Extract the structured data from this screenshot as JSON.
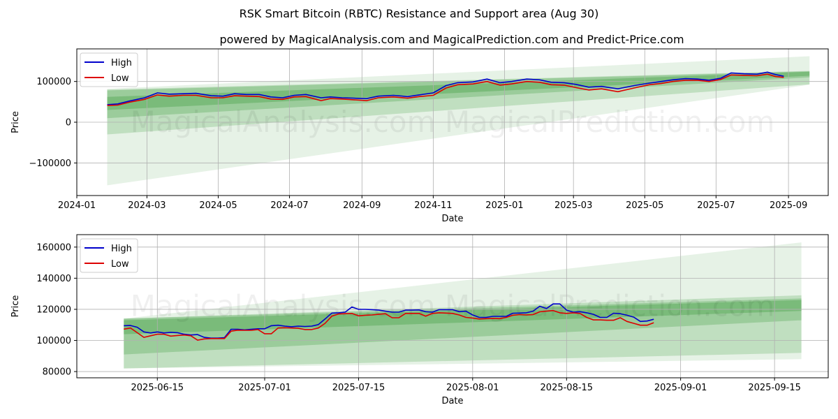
{
  "figure": {
    "title": "RSK Smart Bitcoin (RBTC) Resistance and Support area (Aug 30)",
    "subtitle": "powered by MagicalAnalysis.com and MagicalPrediction.com and Predict-Price.com",
    "watermark_text": "MagicalAnalysis.com   MagicalPrediction.com"
  },
  "colors": {
    "high": "#0000cc",
    "low": "#dd0000",
    "band": "#3c9a3c",
    "grid": "#b0b0b0"
  },
  "chart_data": [
    {
      "type": "line",
      "xlabel": "Date",
      "ylabel": "Price",
      "xlim": [
        "2024-01-01",
        "2025-10-05"
      ],
      "ylim": [
        -180000,
        180000
      ],
      "xticks": [
        "2024-01-01",
        "2024-03-01",
        "2024-05-01",
        "2024-07-01",
        "2024-09-01",
        "2024-11-01",
        "2025-01-01",
        "2025-03-01",
        "2025-05-01",
        "2025-07-01",
        "2025-09-01"
      ],
      "xtick_labels": [
        "2024-01",
        "2024-03",
        "2024-05",
        "2024-07",
        "2024-09",
        "2024-11",
        "2025-01",
        "2025-03",
        "2025-05",
        "2025-07",
        "2025-09"
      ],
      "yticks": [
        -100000,
        0,
        100000
      ],
      "ytick_labels": [
        "−100000",
        "0",
        "100000"
      ],
      "grid": true,
      "legend": {
        "position": "top-left",
        "entries": [
          "High",
          "Low"
        ]
      },
      "bands": [
        {
          "x": [
            "2024-01-27",
            "2025-09-19"
          ],
          "upper": [
            82000,
            162000
          ],
          "lower": [
            -155000,
            92000
          ],
          "opacity": 0.13
        },
        {
          "x": [
            "2024-01-27",
            "2025-09-19"
          ],
          "upper": [
            80000,
            126000
          ],
          "lower": [
            -30000,
            93000
          ],
          "opacity": 0.22
        },
        {
          "x": [
            "2024-01-27",
            "2025-09-19"
          ],
          "upper": [
            78000,
            125000
          ],
          "lower": [
            10000,
            110000
          ],
          "opacity": 0.28
        },
        {
          "x": [
            "2024-01-27",
            "2025-09-19"
          ],
          "upper": [
            62000,
            124000
          ],
          "lower": [
            30000,
            114000
          ],
          "opacity": 0.35
        }
      ],
      "series": [
        {
          "name": "High",
          "x": [
            "2024-01-27",
            "2024-02-05",
            "2024-02-15",
            "2024-02-28",
            "2024-03-10",
            "2024-03-20",
            "2024-04-01",
            "2024-04-12",
            "2024-04-25",
            "2024-05-05",
            "2024-05-15",
            "2024-05-25",
            "2024-06-05",
            "2024-06-15",
            "2024-06-25",
            "2024-07-05",
            "2024-07-15",
            "2024-07-28",
            "2024-08-05",
            "2024-08-15",
            "2024-08-25",
            "2024-09-05",
            "2024-09-15",
            "2024-09-28",
            "2024-10-10",
            "2024-10-20",
            "2024-11-01",
            "2024-11-12",
            "2024-11-22",
            "2024-12-05",
            "2024-12-17",
            "2024-12-28",
            "2025-01-07",
            "2025-01-20",
            "2025-01-31",
            "2025-02-10",
            "2025-02-21",
            "2025-03-03",
            "2025-03-14",
            "2025-03-25",
            "2025-04-08",
            "2025-04-22",
            "2025-05-05",
            "2025-05-15",
            "2025-05-25",
            "2025-06-05",
            "2025-06-15",
            "2025-06-25",
            "2025-07-05",
            "2025-07-14",
            "2025-07-25",
            "2025-08-05",
            "2025-08-14",
            "2025-08-21",
            "2025-08-28"
          ],
          "values": [
            43000,
            45000,
            52000,
            60000,
            72000,
            69000,
            70000,
            71000,
            65000,
            64000,
            70000,
            68000,
            68000,
            62000,
            60000,
            66000,
            68000,
            60000,
            62000,
            60000,
            59000,
            58000,
            64000,
            66000,
            63000,
            67000,
            72000,
            90000,
            97000,
            99000,
            106000,
            97000,
            100000,
            106000,
            104000,
            98000,
            97000,
            93000,
            86000,
            88000,
            82000,
            90000,
            96000,
            100000,
            104000,
            107000,
            106000,
            103000,
            108000,
            121000,
            119000,
            118000,
            123000,
            117000,
            113000
          ]
        },
        {
          "name": "Low",
          "x": [
            "2024-01-27",
            "2024-02-05",
            "2024-02-15",
            "2024-02-28",
            "2024-03-10",
            "2024-03-20",
            "2024-04-01",
            "2024-04-12",
            "2024-04-25",
            "2024-05-05",
            "2024-05-15",
            "2024-05-25",
            "2024-06-05",
            "2024-06-15",
            "2024-06-25",
            "2024-07-05",
            "2024-07-15",
            "2024-07-28",
            "2024-08-05",
            "2024-08-15",
            "2024-08-25",
            "2024-09-05",
            "2024-09-15",
            "2024-09-28",
            "2024-10-10",
            "2024-10-20",
            "2024-11-01",
            "2024-11-12",
            "2024-11-22",
            "2024-12-05",
            "2024-12-17",
            "2024-12-28",
            "2025-01-07",
            "2025-01-20",
            "2025-01-31",
            "2025-02-10",
            "2025-02-21",
            "2025-03-03",
            "2025-03-14",
            "2025-03-25",
            "2025-04-08",
            "2025-04-22",
            "2025-05-05",
            "2025-05-15",
            "2025-05-25",
            "2025-06-05",
            "2025-06-15",
            "2025-06-25",
            "2025-07-05",
            "2025-07-14",
            "2025-07-25",
            "2025-08-05",
            "2025-08-14",
            "2025-08-21",
            "2025-08-28"
          ],
          "values": [
            41000,
            42000,
            49000,
            56000,
            67000,
            64000,
            66000,
            66000,
            60000,
            60000,
            65000,
            64000,
            63000,
            57000,
            56000,
            62000,
            63000,
            53000,
            58000,
            57000,
            55000,
            53000,
            60000,
            62000,
            59000,
            63000,
            66000,
            84000,
            92000,
            94000,
            100000,
            91000,
            94000,
            100000,
            98000,
            92000,
            91000,
            85000,
            79000,
            82000,
            75000,
            84000,
            92000,
            95000,
            100000,
            103000,
            103000,
            100000,
            105000,
            116000,
            115000,
            114000,
            118000,
            112000,
            110000
          ]
        }
      ]
    },
    {
      "type": "line",
      "xlabel": "Date",
      "ylabel": "Price",
      "xlim": [
        "2025-06-03",
        "2025-09-23"
      ],
      "ylim": [
        76000,
        168000
      ],
      "xticks": [
        "2025-06-15",
        "2025-07-01",
        "2025-07-15",
        "2025-08-01",
        "2025-08-15",
        "2025-09-01",
        "2025-09-15"
      ],
      "xtick_labels": [
        "2025-06-15",
        "2025-07-01",
        "2025-07-15",
        "2025-08-01",
        "2025-08-15",
        "2025-09-01",
        "2025-09-15"
      ],
      "yticks": [
        80000,
        100000,
        120000,
        140000,
        160000
      ],
      "ytick_labels": [
        "80000",
        "100000",
        "120000",
        "140000",
        "160000"
      ],
      "grid": true,
      "legend": {
        "position": "top-left",
        "entries": [
          "High",
          "Low"
        ]
      },
      "bands": [
        {
          "x": [
            "2025-06-10",
            "2025-09-19"
          ],
          "upper": [
            114000,
            163000
          ],
          "lower": [
            82000,
            88000
          ],
          "opacity": 0.13
        },
        {
          "x": [
            "2025-06-10",
            "2025-09-19"
          ],
          "upper": [
            114000,
            129000
          ],
          "lower": [
            82000,
            92000
          ],
          "opacity": 0.22
        },
        {
          "x": [
            "2025-06-10",
            "2025-09-19"
          ],
          "upper": [
            114000,
            127000
          ],
          "lower": [
            91000,
            113000
          ],
          "opacity": 0.28
        },
        {
          "x": [
            "2025-06-10",
            "2025-09-19"
          ],
          "upper": [
            113000,
            126000
          ],
          "lower": [
            104000,
            119000
          ],
          "opacity": 0.35
        }
      ],
      "series": [
        {
          "name": "High",
          "x": [
            "2025-06-10",
            "2025-06-11",
            "2025-06-12",
            "2025-06-13",
            "2025-06-14",
            "2025-06-15",
            "2025-06-16",
            "2025-06-17",
            "2025-06-18",
            "2025-06-19",
            "2025-06-20",
            "2025-06-21",
            "2025-06-22",
            "2025-06-23",
            "2025-06-24",
            "2025-06-25",
            "2025-06-26",
            "2025-06-27",
            "2025-06-28",
            "2025-06-29",
            "2025-06-30",
            "2025-07-01",
            "2025-07-02",
            "2025-07-03",
            "2025-07-04",
            "2025-07-05",
            "2025-07-06",
            "2025-07-07",
            "2025-07-08",
            "2025-07-09",
            "2025-07-10",
            "2025-07-11",
            "2025-07-12",
            "2025-07-13",
            "2025-07-14",
            "2025-07-15",
            "2025-07-16",
            "2025-07-17",
            "2025-07-18",
            "2025-07-19",
            "2025-07-20",
            "2025-07-21",
            "2025-07-22",
            "2025-07-23",
            "2025-07-24",
            "2025-07-25",
            "2025-07-26",
            "2025-07-27",
            "2025-07-28",
            "2025-07-29",
            "2025-07-30",
            "2025-07-31",
            "2025-08-01",
            "2025-08-02",
            "2025-08-03",
            "2025-08-04",
            "2025-08-05",
            "2025-08-06",
            "2025-08-07",
            "2025-08-08",
            "2025-08-09",
            "2025-08-10",
            "2025-08-11",
            "2025-08-12",
            "2025-08-13",
            "2025-08-14",
            "2025-08-15",
            "2025-08-16",
            "2025-08-17",
            "2025-08-18",
            "2025-08-19",
            "2025-08-20",
            "2025-08-21",
            "2025-08-22",
            "2025-08-23",
            "2025-08-24",
            "2025-08-25",
            "2025-08-26",
            "2025-08-27",
            "2025-08-28"
          ],
          "values": [
            109500,
            109600,
            108500,
            105500,
            104800,
            105500,
            104800,
            105200,
            105000,
            104000,
            103500,
            103800,
            102000,
            101500,
            101500,
            101800,
            107200,
            107200,
            106800,
            107200,
            107500,
            107500,
            109500,
            109800,
            109200,
            108800,
            109200,
            109000,
            109200,
            110200,
            113800,
            117600,
            117800,
            118200,
            121500,
            120000,
            120000,
            119800,
            119500,
            118800,
            118200,
            118200,
            119500,
            119500,
            119600,
            118500,
            118200,
            119800,
            119800,
            119800,
            118500,
            118800,
            116400,
            114800,
            114800,
            115500,
            115500,
            115500,
            117500,
            117600,
            117800,
            118800,
            122000,
            120500,
            123500,
            123500,
            119500,
            118200,
            118500,
            117800,
            116800,
            114800,
            114800,
            117500,
            117200,
            116200,
            115000,
            112200,
            112500,
            113600
          ]
        },
        {
          "name": "Low",
          "x": [
            "2025-06-10",
            "2025-06-11",
            "2025-06-12",
            "2025-06-13",
            "2025-06-14",
            "2025-06-15",
            "2025-06-16",
            "2025-06-17",
            "2025-06-18",
            "2025-06-19",
            "2025-06-20",
            "2025-06-21",
            "2025-06-22",
            "2025-06-23",
            "2025-06-24",
            "2025-06-25",
            "2025-06-26",
            "2025-06-27",
            "2025-06-28",
            "2025-06-29",
            "2025-06-30",
            "2025-07-01",
            "2025-07-02",
            "2025-07-03",
            "2025-07-04",
            "2025-07-05",
            "2025-07-06",
            "2025-07-07",
            "2025-07-08",
            "2025-07-09",
            "2025-07-10",
            "2025-07-11",
            "2025-07-12",
            "2025-07-13",
            "2025-07-14",
            "2025-07-15",
            "2025-07-16",
            "2025-07-17",
            "2025-07-18",
            "2025-07-19",
            "2025-07-20",
            "2025-07-21",
            "2025-07-22",
            "2025-07-23",
            "2025-07-24",
            "2025-07-25",
            "2025-07-26",
            "2025-07-27",
            "2025-07-28",
            "2025-07-29",
            "2025-07-30",
            "2025-07-31",
            "2025-08-01",
            "2025-08-02",
            "2025-08-03",
            "2025-08-04",
            "2025-08-05",
            "2025-08-06",
            "2025-08-07",
            "2025-08-08",
            "2025-08-09",
            "2025-08-10",
            "2025-08-11",
            "2025-08-12",
            "2025-08-13",
            "2025-08-14",
            "2025-08-15",
            "2025-08-16",
            "2025-08-17",
            "2025-08-18",
            "2025-08-19",
            "2025-08-20",
            "2025-08-21",
            "2025-08-22",
            "2025-08-23",
            "2025-08-24",
            "2025-08-25",
            "2025-08-26",
            "2025-08-27",
            "2025-08-28"
          ],
          "values": [
            107300,
            108000,
            105000,
            102000,
            103000,
            104000,
            104000,
            102800,
            103200,
            103500,
            103000,
            100200,
            101000,
            101200,
            101200,
            101200,
            106000,
            106600,
            106500,
            106500,
            107000,
            104300,
            104300,
            108000,
            108200,
            108000,
            107800,
            107000,
            107000,
            108000,
            111000,
            115600,
            117000,
            117200,
            117400,
            115800,
            116200,
            116400,
            116800,
            117200,
            114600,
            114600,
            117400,
            117400,
            117400,
            115600,
            117400,
            117800,
            117600,
            117400,
            116400,
            114800,
            114400,
            113800,
            114000,
            114200,
            114000,
            114800,
            116200,
            116600,
            116400,
            116600,
            118400,
            118800,
            119200,
            117800,
            117400,
            117800,
            117400,
            114800,
            113200,
            113200,
            113000,
            113000,
            114600,
            112200,
            111000,
            109800,
            109800,
            111400
          ]
        }
      ]
    }
  ]
}
